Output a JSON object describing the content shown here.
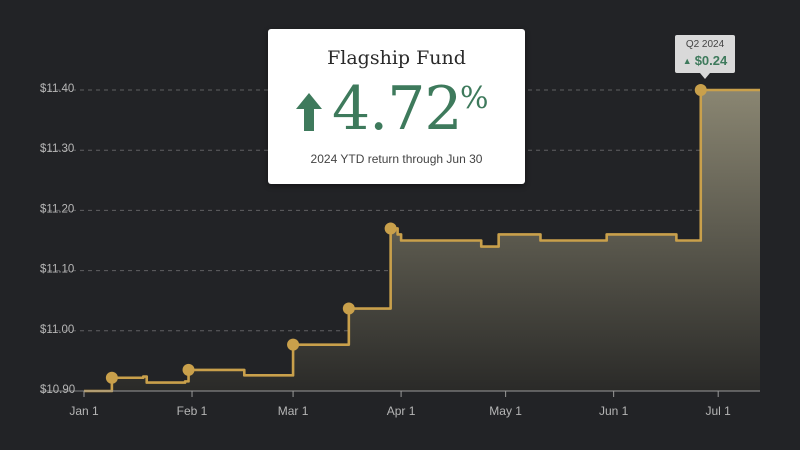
{
  "card": {
    "fund_name": "Flagship Fund",
    "return_value": "4.72",
    "return_unit": "%",
    "subtitle": "2024 YTD return through Jun 30"
  },
  "tooltip": {
    "quarter": "Q2 2024",
    "arrow_glyph": "▲",
    "amount": "$0.24"
  },
  "icons": {
    "card_arrow": "arrow-up-icon",
    "tooltip_arrow": "triangle-up-icon"
  },
  "colors": {
    "background": "#222326",
    "line": "#c9a04b",
    "fill_top": "#8a8672",
    "positive": "#3e7a5c",
    "grid": "#8a8a8a"
  },
  "chart_data": {
    "type": "area",
    "x_format": "day-of-year 2024",
    "xlim": [
      1,
      195
    ],
    "ylim": [
      10.9,
      11.4
    ],
    "ytick_values": [
      10.9,
      11.0,
      11.1,
      11.2,
      11.3,
      11.4
    ],
    "ytick_labels": [
      "$10.90",
      "$11.00",
      "$11.10",
      "$11.20",
      "$11.30",
      "$11.40"
    ],
    "xticks": [
      {
        "x": 1,
        "label": "Jan 1"
      },
      {
        "x": 32,
        "label": "Feb 1"
      },
      {
        "x": 61,
        "label": "Mar 1"
      },
      {
        "x": 92,
        "label": "Apr 1"
      },
      {
        "x": 122,
        "label": "May 1"
      },
      {
        "x": 153,
        "label": "Jun 1"
      },
      {
        "x": 183,
        "label": "Jul 1"
      }
    ],
    "grid": "horizontal dashed",
    "series": [
      {
        "step": true,
        "points": [
          [
            1,
            10.9
          ],
          [
            8,
            10.9
          ],
          [
            9,
            10.922
          ],
          [
            18,
            10.924
          ],
          [
            19,
            10.914
          ],
          [
            30,
            10.916
          ],
          [
            31,
            10.935
          ],
          [
            46,
            10.935
          ],
          [
            47,
            10.926
          ],
          [
            60,
            10.926
          ],
          [
            61,
            10.977
          ],
          [
            76,
            10.977
          ],
          [
            77,
            11.037
          ],
          [
            88,
            11.037
          ],
          [
            89,
            11.17
          ],
          [
            91,
            11.16
          ],
          [
            92,
            11.15
          ],
          [
            114,
            11.15
          ],
          [
            115,
            11.14
          ],
          [
            119,
            11.14
          ],
          [
            120,
            11.16
          ],
          [
            131,
            11.16
          ],
          [
            132,
            11.15
          ],
          [
            150,
            11.15
          ],
          [
            151,
            11.16
          ],
          [
            170,
            11.16
          ],
          [
            171,
            11.15
          ],
          [
            177,
            11.15
          ],
          [
            178,
            11.4
          ],
          [
            195,
            11.4
          ]
        ]
      }
    ],
    "markers": [
      {
        "x": 9,
        "y": 10.922
      },
      {
        "x": 31,
        "y": 10.935
      },
      {
        "x": 61,
        "y": 10.977
      },
      {
        "x": 77,
        "y": 11.037
      },
      {
        "x": 89,
        "y": 11.17
      },
      {
        "x": 178,
        "y": 11.4
      }
    ]
  }
}
